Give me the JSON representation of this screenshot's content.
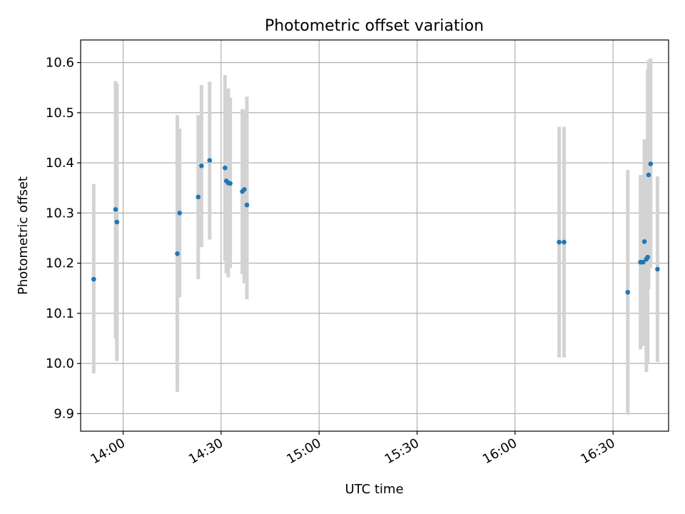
{
  "chart_data": {
    "type": "scatter",
    "title": "Photometric offset variation",
    "xlabel": "UTC time",
    "ylabel": "Photometric offset",
    "x_ticks": [
      "14:00",
      "14:30",
      "15:00",
      "15:30",
      "16:00",
      "16:30"
    ],
    "y_ticks": [
      "9.9",
      "10.0",
      "10.1",
      "10.2",
      "10.3",
      "10.4",
      "10.5",
      "10.6"
    ],
    "xlim": [
      "13:47",
      "16:47"
    ],
    "ylim": [
      9.865,
      10.645
    ],
    "grid": true,
    "marker_color": "#1f77b4",
    "errorbar_color": "#d3d3d3",
    "series": [
      {
        "points": [
          {
            "t": "13:51",
            "y": 10.168,
            "lo": 9.98,
            "hi": 10.358
          },
          {
            "t": "13:57.7",
            "y": 10.307,
            "lo": 10.05,
            "hi": 10.563
          },
          {
            "t": "13:58.1",
            "y": 10.282,
            "lo": 10.005,
            "hi": 10.558
          },
          {
            "t": "14:16.6",
            "y": 10.219,
            "lo": 9.943,
            "hi": 10.495
          },
          {
            "t": "14:17.3",
            "y": 10.3,
            "lo": 10.132,
            "hi": 10.468
          },
          {
            "t": "14:23",
            "y": 10.332,
            "lo": 10.168,
            "hi": 10.495
          },
          {
            "t": "14:24",
            "y": 10.394,
            "lo": 10.232,
            "hi": 10.555
          },
          {
            "t": "14:26.5",
            "y": 10.405,
            "lo": 10.247,
            "hi": 10.562
          },
          {
            "t": "14:31.2",
            "y": 10.39,
            "lo": 10.205,
            "hi": 10.575
          },
          {
            "t": "14:31.6",
            "y": 10.364,
            "lo": 10.18,
            "hi": 10.548
          },
          {
            "t": "14:32.2",
            "y": 10.36,
            "lo": 10.172,
            "hi": 10.548
          },
          {
            "t": "14:32.8",
            "y": 10.359,
            "lo": 10.19,
            "hi": 10.53
          },
          {
            "t": "14:36.5",
            "y": 10.343,
            "lo": 10.178,
            "hi": 10.507
          },
          {
            "t": "14:37.1",
            "y": 10.347,
            "lo": 10.16,
            "hi": 10.505
          },
          {
            "t": "14:37.9",
            "y": 10.316,
            "lo": 10.128,
            "hi": 10.532
          },
          {
            "t": "16:13.5",
            "y": 10.242,
            "lo": 10.012,
            "hi": 10.472
          },
          {
            "t": "16:15",
            "y": 10.242,
            "lo": 10.012,
            "hi": 10.472
          },
          {
            "t": "16:34.5",
            "y": 10.142,
            "lo": 9.898,
            "hi": 10.386
          },
          {
            "t": "16:38.4",
            "y": 10.202,
            "lo": 10.028,
            "hi": 10.376
          },
          {
            "t": "16:39.2",
            "y": 10.202,
            "lo": 10.035,
            "hi": 10.376
          },
          {
            "t": "16:39.6",
            "y": 10.243,
            "lo": 10.04,
            "hi": 10.447
          },
          {
            "t": "16:40.2",
            "y": 10.208,
            "lo": 9.983,
            "hi": 10.438
          },
          {
            "t": "16:40.6",
            "y": 10.212,
            "lo": 10.0,
            "hi": 10.585
          },
          {
            "t": "16:40.9",
            "y": 10.376,
            "lo": 10.148,
            "hi": 10.605
          },
          {
            "t": "16:41.5",
            "y": 10.398,
            "lo": 10.19,
            "hi": 10.608
          },
          {
            "t": "16:43.6",
            "y": 10.188,
            "lo": 10.003,
            "hi": 10.373
          }
        ]
      }
    ]
  }
}
